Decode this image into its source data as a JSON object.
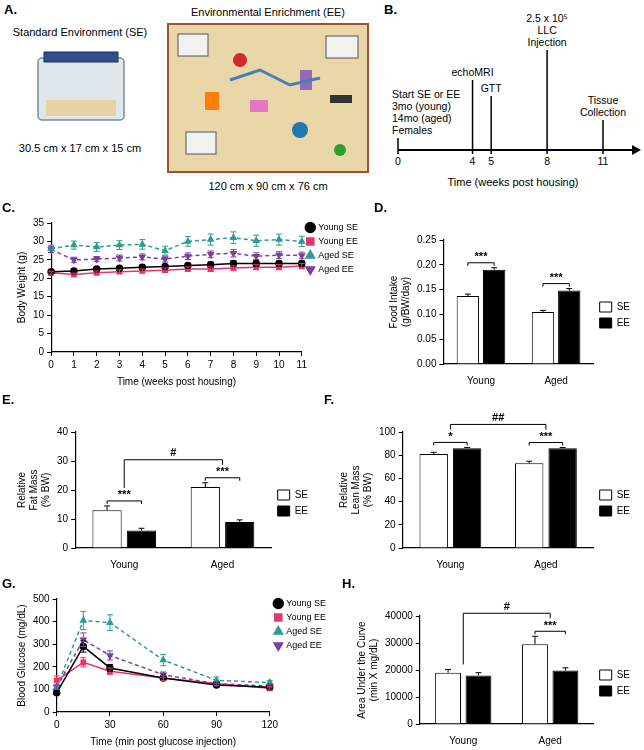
{
  "panel_A": {
    "panel": "A.",
    "left": {
      "title": "Standard Environment (SE)",
      "size": "30.5 cm x 17 cm x 15 cm"
    },
    "right": {
      "title": "Environmental Enrichment (EE)",
      "size": "120 cm x 90 cm x 76 cm"
    }
  },
  "panel_B": {
    "panel": "B.",
    "axis_label": "Time (weeks post housing)",
    "ticks": [
      0,
      4,
      5,
      8,
      11
    ],
    "events": [
      {
        "at": 0,
        "text": [
          "Start SE or EE",
          "3mo (young)",
          "14mo (aged)",
          "Females"
        ]
      },
      {
        "at": 4,
        "text": [
          "echoMRI"
        ]
      },
      {
        "at": 5,
        "text": [
          "GTT"
        ]
      },
      {
        "at": 8,
        "text": [
          "2.5 x 10⁵",
          "LLC",
          "Injection"
        ]
      },
      {
        "at": 11,
        "text": [
          "Tissue",
          "Collection"
        ]
      }
    ]
  },
  "chart_data": [
    {
      "panel": "C.",
      "type": "line",
      "x_label": "Time (weeks post housing)",
      "y_label": "Body Weight (g)",
      "x": [
        0,
        1,
        2,
        3,
        4,
        5,
        6,
        7,
        8,
        9,
        10,
        11
      ],
      "xlim": [
        0,
        11
      ],
      "xticks": [
        0,
        1,
        2,
        3,
        4,
        5,
        6,
        7,
        8,
        9,
        10,
        11
      ],
      "ylim": [
        0,
        35
      ],
      "yticks": [
        0,
        5,
        10,
        15,
        20,
        25,
        30,
        35
      ],
      "grid": false,
      "legend": "right",
      "series": [
        {
          "name": "Young SE",
          "color": "#000000",
          "marker": "circle",
          "line_style": "solid",
          "values": [
            21.8,
            22,
            22.5,
            22.7,
            23,
            23.2,
            23.5,
            23.7,
            24,
            24,
            24,
            24
          ],
          "errors": [
            0.4,
            0.5,
            0.5,
            0.5,
            0.6,
            0.6,
            0.6,
            0.7,
            0.7,
            0.7,
            0.7,
            0.7
          ]
        },
        {
          "name": "Young EE",
          "color": "#e8336e",
          "marker": "square",
          "line_style": "solid",
          "values": [
            21.5,
            21,
            21.5,
            21.8,
            22,
            22.2,
            22.5,
            22.5,
            22.8,
            23,
            23,
            23.3
          ],
          "errors": [
            0.4,
            0.4,
            0.5,
            0.5,
            0.5,
            0.6,
            0.6,
            0.6,
            0.6,
            0.7,
            0.7,
            0.7
          ]
        },
        {
          "name": "Aged SE",
          "color": "#2a9d8f",
          "marker": "triangle",
          "line_style": "dashed",
          "values": [
            28,
            29,
            28.5,
            29,
            29.2,
            27.5,
            30,
            30.5,
            31,
            30.2,
            30.5,
            30
          ],
          "errors": [
            1.0,
            1.1,
            1.2,
            1.2,
            1.3,
            1.2,
            1.3,
            1.5,
            1.6,
            1.5,
            1.5,
            1.4
          ]
        },
        {
          "name": "Aged EE",
          "color": "#7b3fa0",
          "marker": "triangle-down",
          "line_style": "dashed",
          "values": [
            27.8,
            25,
            25.2,
            25.5,
            25.8,
            25.2,
            26,
            26.5,
            26.8,
            26,
            26.3,
            26.2
          ],
          "errors": [
            0.8,
            0.7,
            0.7,
            0.8,
            0.8,
            0.8,
            0.9,
            0.9,
            1.0,
            0.9,
            0.9,
            0.9
          ]
        }
      ]
    },
    {
      "panel": "D.",
      "type": "bar",
      "y_label": [
        "Food Intake",
        "(g/BW/day)"
      ],
      "categories": [
        "Young",
        "Aged"
      ],
      "ylim": [
        0,
        0.25
      ],
      "yticks": [
        {
          "value": 0,
          "label": "0.00"
        },
        {
          "value": 0.05,
          "label": "0.05"
        },
        {
          "value": 0.1,
          "label": "0.10"
        },
        {
          "value": 0.15,
          "label": "0.15"
        },
        {
          "value": 0.2,
          "label": "0.20"
        },
        {
          "value": 0.25,
          "label": "0.25"
        }
      ],
      "grid": false,
      "legend": "right",
      "series": [
        {
          "name": "SE",
          "color": "#ffffff",
          "values": [
            0.137,
            0.105
          ],
          "errors": [
            0.004,
            0.003
          ]
        },
        {
          "name": "EE",
          "color": "#000000",
          "values": [
            0.19,
            0.148
          ],
          "errors": [
            0.004,
            0.004
          ]
        }
      ],
      "annotations": {
        "within": [
          "***",
          "***"
        ]
      }
    },
    {
      "panel": "E.",
      "type": "bar",
      "y_label": [
        "Relative",
        "Fat Mass",
        "(% BW)"
      ],
      "categories": [
        "Young",
        "Aged"
      ],
      "ylim": [
        0,
        40
      ],
      "yticks": [
        0,
        10,
        20,
        30,
        40
      ],
      "grid": false,
      "legend": "right",
      "series": [
        {
          "name": "SE",
          "color": "#ffffff",
          "values": [
            13,
            21
          ],
          "errors": [
            1.5,
            1.5
          ]
        },
        {
          "name": "EE",
          "color": "#000000",
          "values": [
            6,
            9
          ],
          "errors": [
            0.8,
            0.7
          ]
        }
      ],
      "annotations": {
        "within": [
          "***",
          "***"
        ],
        "between": "#"
      }
    },
    {
      "panel": "F.",
      "type": "bar",
      "y_label": [
        "Relative",
        "Lean Mass",
        "(% BW)"
      ],
      "categories": [
        "Young",
        "Aged"
      ],
      "ylim": [
        0,
        100
      ],
      "yticks": [
        0,
        20,
        40,
        60,
        80,
        100
      ],
      "grid": false,
      "legend": "right",
      "series": [
        {
          "name": "SE",
          "color": "#ffffff",
          "values": [
            81,
            73
          ],
          "errors": [
            1.5,
            1.8
          ]
        },
        {
          "name": "EE",
          "color": "#000000",
          "values": [
            86,
            86
          ],
          "errors": [
            0.7,
            0.6
          ]
        }
      ],
      "annotations": {
        "within": [
          "*",
          "***"
        ],
        "between": "##"
      }
    },
    {
      "panel": "G.",
      "type": "line",
      "x_label": "Time (min post glucose injection)",
      "y_label": "Blood Glucose (mg/dL)",
      "x": [
        0,
        15,
        30,
        60,
        90,
        120
      ],
      "xlim": [
        0,
        120
      ],
      "xticks": [
        0,
        30,
        60,
        90,
        120
      ],
      "ylim": [
        0,
        500
      ],
      "yticks": [
        0,
        100,
        200,
        300,
        400,
        500
      ],
      "grid": false,
      "legend": "right",
      "series": [
        {
          "name": "Young SE",
          "color": "#000000",
          "marker": "circle",
          "line_style": "solid",
          "values": [
            85,
            290,
            195,
            150,
            120,
            110
          ],
          "errors": [
            8,
            25,
            15,
            10,
            8,
            8
          ]
        },
        {
          "name": "Young EE",
          "color": "#e8336e",
          "marker": "square",
          "line_style": "solid",
          "values": [
            140,
            220,
            180,
            150,
            125,
            105
          ],
          "errors": [
            20,
            20,
            15,
            10,
            8,
            8
          ]
        },
        {
          "name": "Aged SE",
          "color": "#2a9d8f",
          "marker": "triangle",
          "line_style": "dashed",
          "values": [
            110,
            405,
            395,
            230,
            140,
            130
          ],
          "errors": [
            10,
            40,
            35,
            25,
            15,
            10
          ]
        },
        {
          "name": "Aged EE",
          "color": "#7b3fa0",
          "marker": "triangle-down",
          "line_style": "dashed",
          "values": [
            110,
            320,
            250,
            165,
            125,
            115
          ],
          "errors": [
            10,
            30,
            20,
            12,
            10,
            8
          ]
        }
      ]
    },
    {
      "panel": "H.",
      "type": "bar",
      "y_label": [
        "Area Under the Curve",
        "(min X mg/dL)"
      ],
      "categories": [
        "Young",
        "Aged"
      ],
      "ylim": [
        0,
        40000
      ],
      "yticks": [
        0,
        10000,
        20000,
        30000,
        40000
      ],
      "grid": false,
      "legend": "right",
      "series": [
        {
          "name": "SE",
          "color": "#ffffff",
          "values": [
            19000,
            29500
          ],
          "errors": [
            1200,
            3000
          ]
        },
        {
          "name": "EE",
          "color": "#000000",
          "values": [
            18000,
            19800
          ],
          "errors": [
            1000,
            1000
          ]
        }
      ],
      "annotations": {
        "within": [
          null,
          "***"
        ],
        "between": "#"
      }
    }
  ]
}
